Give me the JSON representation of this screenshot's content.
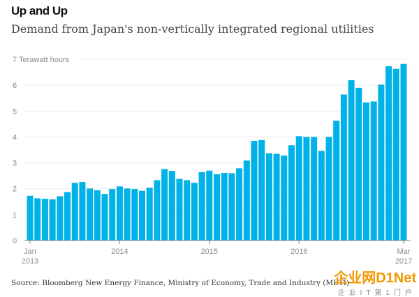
{
  "chart_data": {
    "type": "bar",
    "title": "Up and Up",
    "subtitle": "Demand from Japan's non-vertically integrated regional utilities",
    "ylabel": "Terawatt hours",
    "ylim": [
      0,
      7
    ],
    "yticks": [
      0,
      1,
      2,
      3,
      4,
      5,
      6,
      7
    ],
    "top_tick_label": "7 Terawatt hours",
    "xticks": [
      {
        "index": 0,
        "label": "Jan",
        "label2": "2013"
      },
      {
        "index": 12,
        "label": "2014"
      },
      {
        "index": 24,
        "label": "2015"
      },
      {
        "index": 36,
        "label": "2016"
      },
      {
        "index": 50,
        "label": "Mar",
        "label2": "2017"
      }
    ],
    "grid": true,
    "color": "#00b2e7",
    "start": "Jan 2013",
    "end": "Mar 2017",
    "values": [
      1.73,
      1.63,
      1.61,
      1.59,
      1.71,
      1.87,
      2.23,
      2.26,
      2.01,
      1.94,
      1.8,
      1.99,
      2.09,
      2.01,
      1.99,
      1.92,
      2.04,
      2.33,
      2.76,
      2.69,
      2.38,
      2.33,
      2.23,
      2.64,
      2.7,
      2.56,
      2.61,
      2.6,
      2.79,
      3.09,
      3.85,
      3.88,
      3.37,
      3.35,
      3.28,
      3.68,
      4.03,
      4.0,
      4.0,
      3.46,
      4.0,
      4.63,
      5.64,
      6.19,
      5.9,
      5.33,
      5.37,
      6.02,
      6.73,
      6.63,
      6.82
    ]
  },
  "source": "Source: Bloomberg New Energy Finance, Ministry of Economy, Trade and Industry (METI)",
  "watermark": {
    "main": "企业网D1Net",
    "sub": "企业IT第1门户"
  }
}
